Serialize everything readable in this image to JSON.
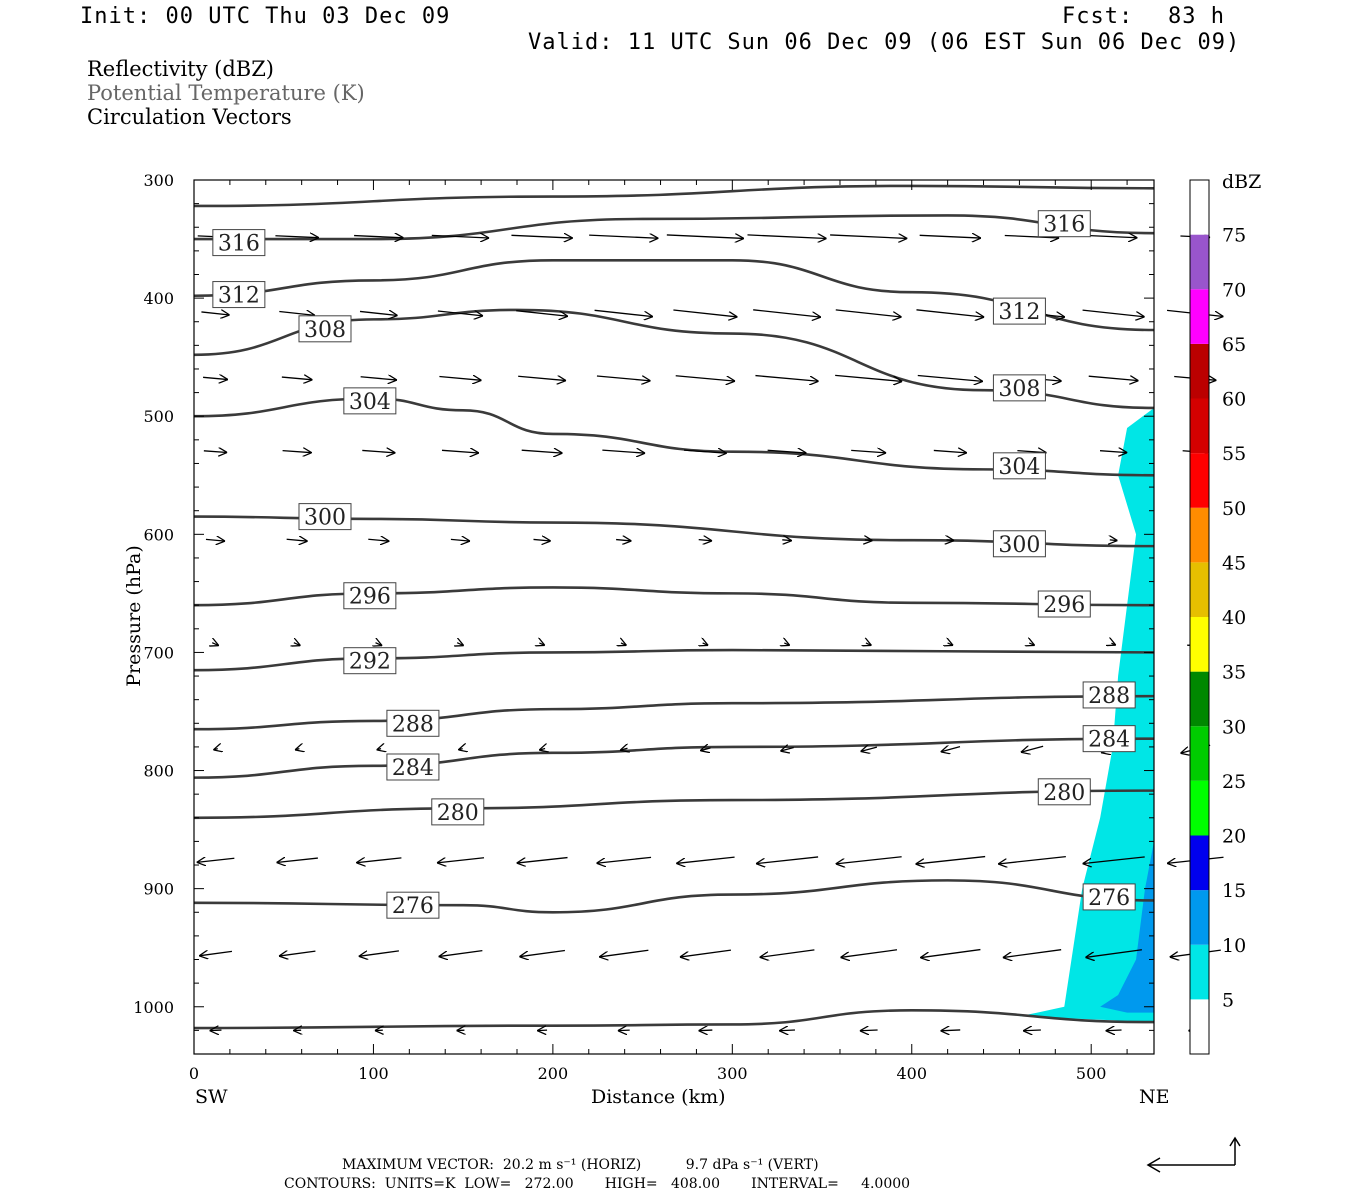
{
  "header": {
    "init": "Init: 00 UTC Thu 03 Dec 09",
    "fcst_label": "Fcst:",
    "fcst_value": "83 h",
    "valid": "Valid: 11 UTC Sun 06 Dec 09 (06 EST Sun 06 Dec 09)"
  },
  "fields": {
    "reflectivity": "Reflectivity (dBZ)",
    "theta": "Potential Temperature (K)",
    "vectors": "Circulation Vectors"
  },
  "axes": {
    "ylabel": "Pressure (hPa)",
    "xlabel": "Distance (km)",
    "left_end": "SW",
    "right_end": "NE",
    "y_ticks": [
      "300",
      "400",
      "500",
      "600",
      "700",
      "800",
      "900",
      "1000"
    ],
    "x_ticks": [
      "0",
      "100",
      "200",
      "300",
      "400",
      "500"
    ]
  },
  "colorbar": {
    "unit": "dBZ",
    "labels": [
      "75",
      "70",
      "65",
      "60",
      "55",
      "50",
      "45",
      "40",
      "35",
      "30",
      "25",
      "20",
      "15",
      "10",
      "5"
    ],
    "colors": [
      "#ffffff",
      "#00e6e6",
      "#0099ee",
      "#0000ee",
      "#00ff00",
      "#00cc00",
      "#008800",
      "#ffff00",
      "#e6bf00",
      "#ff8c00",
      "#ff0000",
      "#d40000",
      "#bb0000",
      "#ff00ff",
      "#9955cc",
      "#ffffff"
    ]
  },
  "footer": {
    "line1": "MAXIMUM VECTOR:  20.2 m s⁻¹ (HORIZ)          9.7 dPa s⁻¹ (VERT)",
    "line2": "CONTOURS:  UNITS=K  LOW=   272.00       HIGH=   408.00       INTERVAL=     4.0000"
  },
  "chart_data": {
    "type": "cross-section",
    "x_range": [
      0,
      535
    ],
    "y_range": [
      300,
      1040
    ],
    "y_scale": "linear-inverted",
    "contour_units": "K",
    "contour_low": 272.0,
    "contour_high": 408.0,
    "contour_interval": 4.0,
    "reflectivity_shading_color": "#00e6e6",
    "reflectivity_core_color": "#0099ee",
    "contours": [
      {
        "value": "",
        "points": [
          [
            0,
            322
          ],
          [
            200,
            314
          ],
          [
            400,
            305
          ],
          [
            535,
            307
          ]
        ]
      },
      {
        "value": "316",
        "points": [
          [
            0,
            350
          ],
          [
            100,
            350
          ],
          [
            250,
            333
          ],
          [
            420,
            330
          ],
          [
            535,
            345
          ]
        ]
      },
      {
        "value": "312",
        "points": [
          [
            0,
            398
          ],
          [
            100,
            385
          ],
          [
            200,
            368
          ],
          [
            300,
            368
          ],
          [
            400,
            395
          ],
          [
            535,
            427
          ]
        ]
      },
      {
        "value": "308",
        "points": [
          [
            0,
            448
          ],
          [
            100,
            418
          ],
          [
            180,
            410
          ],
          [
            300,
            430
          ],
          [
            440,
            478
          ],
          [
            535,
            493
          ]
        ]
      },
      {
        "value": "304",
        "points": [
          [
            0,
            500
          ],
          [
            100,
            485
          ],
          [
            150,
            495
          ],
          [
            200,
            515
          ],
          [
            300,
            530
          ],
          [
            440,
            545
          ],
          [
            535,
            550
          ]
        ]
      },
      {
        "value": "300",
        "points": [
          [
            0,
            585
          ],
          [
            100,
            587
          ],
          [
            200,
            590
          ],
          [
            400,
            605
          ],
          [
            535,
            610
          ]
        ]
      },
      {
        "value": "296",
        "points": [
          [
            0,
            660
          ],
          [
            100,
            650
          ],
          [
            200,
            645
          ],
          [
            300,
            650
          ],
          [
            400,
            658
          ],
          [
            535,
            660
          ]
        ]
      },
      {
        "value": "292",
        "points": [
          [
            0,
            715
          ],
          [
            100,
            705
          ],
          [
            200,
            700
          ],
          [
            300,
            698
          ],
          [
            535,
            700
          ]
        ]
      },
      {
        "value": "288",
        "points": [
          [
            0,
            765
          ],
          [
            100,
            758
          ],
          [
            200,
            748
          ],
          [
            300,
            743
          ],
          [
            535,
            737
          ]
        ]
      },
      {
        "value": "284",
        "points": [
          [
            0,
            806
          ],
          [
            100,
            796
          ],
          [
            200,
            785
          ],
          [
            300,
            780
          ],
          [
            535,
            773
          ]
        ]
      },
      {
        "value": "280",
        "points": [
          [
            0,
            840
          ],
          [
            150,
            832
          ],
          [
            300,
            825
          ],
          [
            535,
            817
          ]
        ]
      },
      {
        "value": "276",
        "points": [
          [
            0,
            912
          ],
          [
            150,
            914
          ],
          [
            200,
            920
          ],
          [
            300,
            905
          ],
          [
            420,
            893
          ],
          [
            535,
            910
          ]
        ]
      },
      {
        "value": "",
        "points": [
          [
            0,
            1018
          ],
          [
            200,
            1016
          ],
          [
            300,
            1015
          ],
          [
            400,
            1003
          ],
          [
            535,
            1013
          ]
        ]
      }
    ],
    "contour_labels": [
      {
        "value": "316",
        "x": 25,
        "y": 353
      },
      {
        "value": "316",
        "x": 485,
        "y": 337
      },
      {
        "value": "312",
        "x": 25,
        "y": 397
      },
      {
        "value": "312",
        "x": 460,
        "y": 411
      },
      {
        "value": "308",
        "x": 73,
        "y": 426
      },
      {
        "value": "308",
        "x": 460,
        "y": 476
      },
      {
        "value": "304",
        "x": 98,
        "y": 487
      },
      {
        "value": "304",
        "x": 460,
        "y": 542
      },
      {
        "value": "300",
        "x": 73,
        "y": 585
      },
      {
        "value": "300",
        "x": 460,
        "y": 608
      },
      {
        "value": "296",
        "x": 98,
        "y": 652
      },
      {
        "value": "296",
        "x": 485,
        "y": 659
      },
      {
        "value": "292",
        "x": 98,
        "y": 707
      },
      {
        "value": "288",
        "x": 122,
        "y": 760
      },
      {
        "value": "288",
        "x": 510,
        "y": 736
      },
      {
        "value": "284",
        "x": 122,
        "y": 797
      },
      {
        "value": "284",
        "x": 510,
        "y": 773
      },
      {
        "value": "280",
        "x": 147,
        "y": 835
      },
      {
        "value": "280",
        "x": 485,
        "y": 818
      },
      {
        "value": "276",
        "x": 122,
        "y": 914
      },
      {
        "value": "276",
        "x": 510,
        "y": 907
      }
    ],
    "max_vector_horizontal": "20.2 m s-1",
    "max_vector_vertical": "9.7 dPa s-1"
  }
}
